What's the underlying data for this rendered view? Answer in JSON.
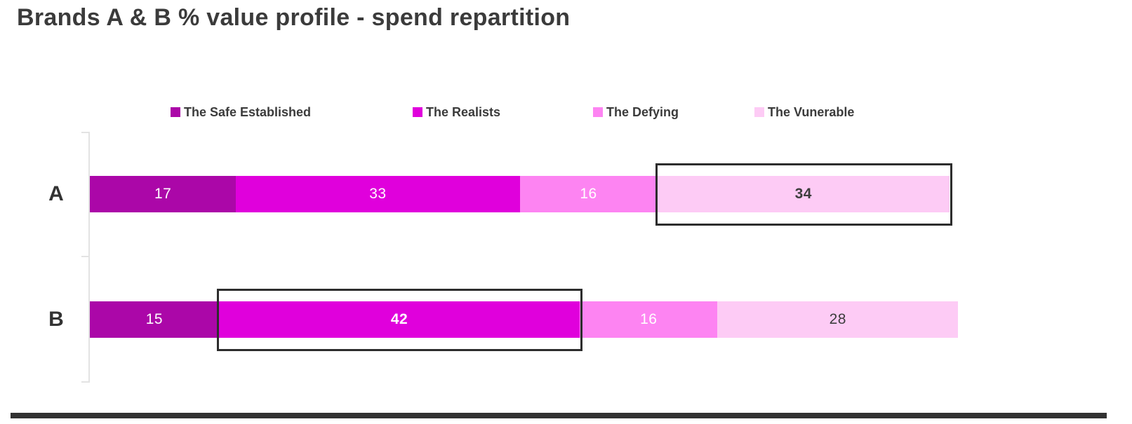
{
  "chart_data": {
    "type": "bar",
    "variant": "stacked-horizontal",
    "title": "Brands A & B % value profile - spend repartition",
    "categories": [
      "A",
      "B"
    ],
    "series": [
      {
        "name": "The Safe Established",
        "color": "#AB07A8",
        "label_color": "#FFFFFF",
        "values": [
          17,
          15
        ]
      },
      {
        "name": "The Realists",
        "color": "#E000DC",
        "label_color": "#FFFFFF",
        "values": [
          33,
          42
        ]
      },
      {
        "name": "The Defying",
        "color": "#FD84F2",
        "label_color": "#FFFFFF",
        "values": [
          16,
          16
        ]
      },
      {
        "name": "The Vunerable",
        "color": "#FDCBF5",
        "label_color": "#3D3D3D",
        "values": [
          34,
          28
        ]
      }
    ],
    "xlim": [
      0,
      100
    ],
    "grid": false,
    "legend_position": "top",
    "highlights": [
      {
        "category": "A",
        "series": "The Vunerable",
        "value": 34
      },
      {
        "category": "B",
        "series": "The Realists",
        "value": 42
      }
    ]
  },
  "colors": {
    "title_text": "#3B3B3B",
    "legend_text": "#3B3B3B",
    "axis_line": "#E3E3E3",
    "highlight_border": "#2D2D2D",
    "bottom_rule": "#323232",
    "background": "#FFFFFF"
  }
}
